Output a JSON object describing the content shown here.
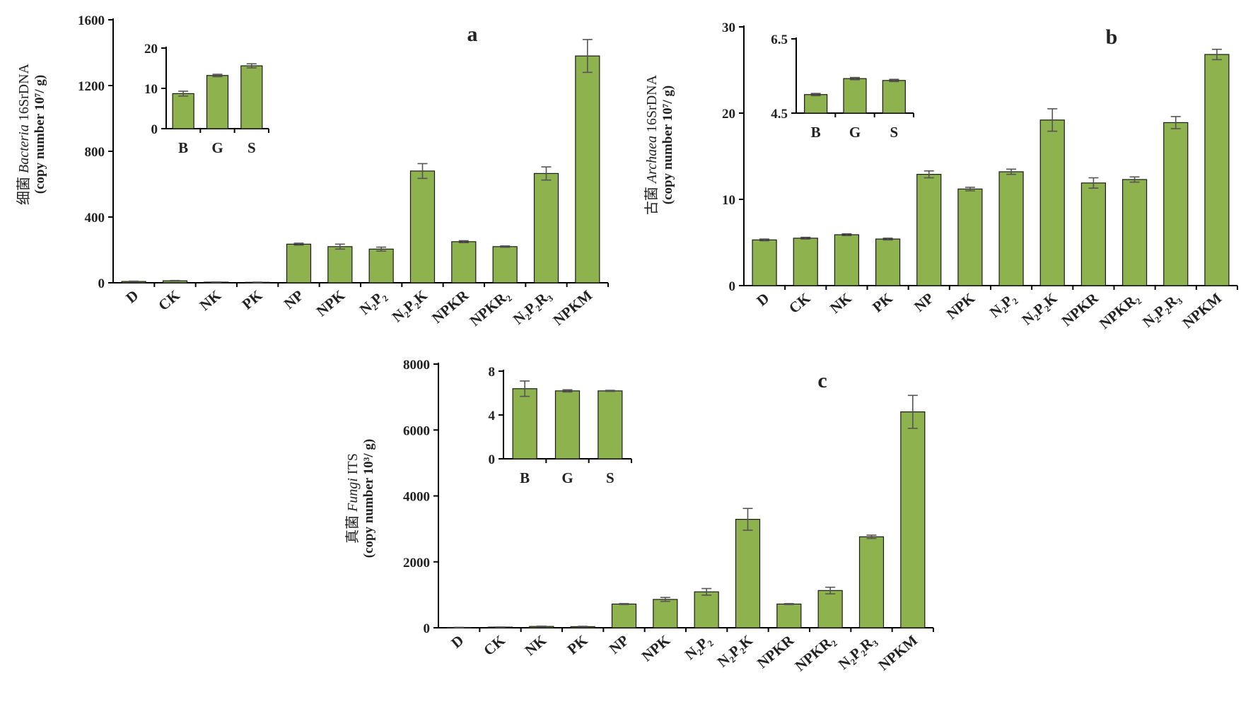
{
  "colors": {
    "bar": "#8db24e",
    "bar_stroke": "#1a1a1a",
    "error": "#555555",
    "axis": "#000000"
  },
  "chart_data": [
    {
      "type": "bar",
      "panel_label": "a",
      "ylabel_cn": "细菌",
      "ylabel_species": "Bacteria",
      "ylabel_gene": "16SrDNA",
      "ylabel_units": "(copy number  10⁷/ g)",
      "categories": [
        "D",
        "CK",
        "NK",
        "PK",
        "NP",
        "NPK",
        "N₂P₂",
        "N₂P₂K",
        "NPKR",
        "NPKR₂",
        "N₂P₂R₃",
        "NPKM"
      ],
      "values": [
        8,
        12,
        4,
        3,
        235,
        220,
        205,
        680,
        250,
        220,
        665,
        1380
      ],
      "errors": [
        2,
        2,
        1,
        1,
        6,
        15,
        12,
        45,
        6,
        4,
        40,
        100
      ],
      "ylim": [
        0,
        1600
      ],
      "yticks": [
        "0",
        "400",
        "800",
        "1200",
        "1600"
      ],
      "inset": {
        "categories": [
          "B",
          "G",
          "S"
        ],
        "values": [
          8.7,
          13.2,
          15.6
        ],
        "errors": [
          0.6,
          0.3,
          0.5
        ],
        "ylim": [
          0,
          20
        ],
        "yticks": [
          "0",
          "10",
          "20"
        ]
      }
    },
    {
      "type": "bar",
      "panel_label": "b",
      "ylabel_cn": "古菌",
      "ylabel_species": "Archaea",
      "ylabel_gene": "16SrDNA",
      "ylabel_units": "(copy number  10⁷/ g)",
      "categories": [
        "D",
        "CK",
        "NK",
        "PK",
        "NP",
        "NPK",
        "N₂P₂",
        "N₂P₂K",
        "NPKR",
        "NPKR₂",
        "N₂P₂R₃",
        "NPKM"
      ],
      "values": [
        5.3,
        5.5,
        5.9,
        5.4,
        12.9,
        11.2,
        13.2,
        19.2,
        11.9,
        12.3,
        18.9,
        26.8
      ],
      "errors": [
        0.1,
        0.1,
        0.1,
        0.1,
        0.4,
        0.2,
        0.3,
        1.3,
        0.6,
        0.3,
        0.7,
        0.6
      ],
      "ylim": [
        0,
        30
      ],
      "yticks": [
        "0",
        "10",
        "20",
        "30"
      ],
      "inset": {
        "categories": [
          "B",
          "G",
          "S"
        ],
        "values": [
          5.0,
          5.43,
          5.38
        ],
        "errors": [
          0.03,
          0.03,
          0.03
        ],
        "ylim": [
          4.5,
          6.5
        ],
        "yticks": [
          "4.5",
          "6.5"
        ]
      }
    },
    {
      "type": "bar",
      "panel_label": "c",
      "ylabel_cn": "真菌",
      "ylabel_species": "Fungi",
      "ylabel_gene": "ITS",
      "ylabel_units": "(copy number  10³/ g)",
      "categories": [
        "D",
        "CK",
        "NK",
        "PK",
        "NP",
        "NPK",
        "N₂P₂",
        "N₂P₂K",
        "NPKR",
        "NPKR₂",
        "N₂P₂R₃",
        "NPKM"
      ],
      "values": [
        10,
        20,
        40,
        35,
        720,
        860,
        1090,
        3290,
        720,
        1130,
        2760,
        6550
      ],
      "errors": [
        3,
        5,
        10,
        10,
        15,
        60,
        100,
        330,
        15,
        100,
        50,
        500
      ],
      "ylim": [
        0,
        8000
      ],
      "yticks": [
        "0",
        "2000",
        "4000",
        "6000",
        "8000"
      ],
      "inset": {
        "categories": [
          "B",
          "G",
          "S"
        ],
        "values": [
          6.4,
          6.2,
          6.2
        ],
        "errors": [
          0.7,
          0.1,
          0.05
        ],
        "ylim": [
          0,
          8
        ],
        "yticks": [
          "0",
          "4",
          "8"
        ]
      }
    }
  ]
}
